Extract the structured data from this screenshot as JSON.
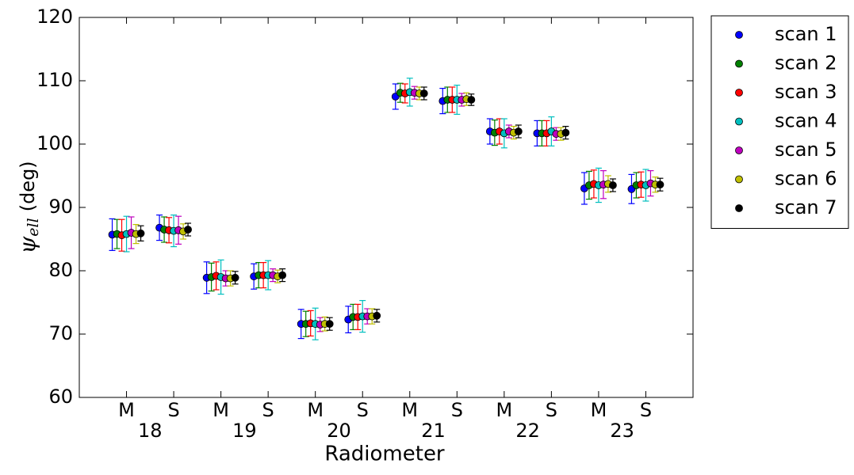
{
  "chart_data": {
    "type": "errorbar",
    "xlabel": "Radiometer",
    "ylabel": {
      "symbol": "ψ",
      "subscript": "ell",
      "unit": "(deg)"
    },
    "categories": [
      "M",
      "S",
      "M",
      "S",
      "M",
      "S",
      "M",
      "S",
      "M",
      "S",
      "M",
      "S"
    ],
    "groups": [
      "18",
      "19",
      "20",
      "21",
      "22",
      "23"
    ],
    "ylim": [
      60,
      120
    ],
    "yticks": [
      60,
      70,
      80,
      90,
      100,
      110,
      120
    ],
    "legend": "outside-upper-right",
    "series": [
      {
        "name": "scan 1",
        "color": "#0000ff",
        "values": [
          85.7,
          86.8,
          78.9,
          79.1,
          71.6,
          72.3,
          107.5,
          106.8,
          102.0,
          101.7,
          93.0,
          92.9
        ],
        "errors": [
          2.5,
          2.0,
          2.5,
          2.0,
          2.3,
          2.1,
          2.0,
          2.0,
          2.0,
          2.0,
          2.5,
          2.3
        ]
      },
      {
        "name": "scan 2",
        "color": "#008000",
        "values": [
          85.8,
          86.5,
          79.0,
          79.3,
          71.6,
          72.7,
          108.1,
          107.0,
          101.8,
          101.7,
          93.5,
          93.5
        ],
        "errors": [
          2.3,
          2.0,
          2.2,
          2.0,
          2.0,
          2.0,
          1.5,
          2.0,
          2.0,
          2.0,
          2.2,
          2.0
        ]
      },
      {
        "name": "scan 3",
        "color": "#ff0000",
        "values": [
          85.6,
          86.4,
          79.2,
          79.3,
          71.7,
          72.7,
          108.0,
          107.0,
          102.0,
          101.7,
          93.7,
          93.6
        ],
        "errors": [
          2.5,
          2.0,
          2.2,
          2.0,
          2.0,
          2.0,
          1.5,
          2.0,
          2.0,
          2.0,
          2.2,
          2.0
        ]
      },
      {
        "name": "scan 4",
        "color": "#00bfbf",
        "values": [
          85.8,
          86.3,
          79.0,
          79.3,
          71.6,
          72.8,
          108.2,
          107.0,
          101.7,
          102.0,
          93.5,
          93.5
        ],
        "errors": [
          2.8,
          2.5,
          2.7,
          2.3,
          2.5,
          2.5,
          2.2,
          2.3,
          2.3,
          2.3,
          2.7,
          2.5
        ]
      },
      {
        "name": "scan 5",
        "color": "#bf00bf",
        "values": [
          86.0,
          86.4,
          78.8,
          79.3,
          71.5,
          72.8,
          108.1,
          107.0,
          102.0,
          101.6,
          93.6,
          93.8
        ],
        "errors": [
          2.5,
          2.2,
          1.2,
          1.0,
          1.1,
          1.2,
          1.0,
          1.0,
          1.0,
          1.0,
          2.2,
          2.0
        ]
      },
      {
        "name": "scan 6",
        "color": "#bfbf00",
        "values": [
          85.8,
          86.2,
          78.8,
          79.1,
          71.6,
          72.8,
          108.0,
          107.1,
          101.8,
          101.6,
          93.7,
          93.6
        ],
        "errors": [
          1.5,
          1.2,
          1.2,
          1.0,
          1.1,
          1.2,
          1.0,
          1.0,
          1.0,
          1.0,
          1.3,
          1.2
        ]
      },
      {
        "name": "scan 7",
        "color": "#000000",
        "values": [
          85.9,
          86.5,
          78.9,
          79.3,
          71.6,
          72.9,
          108.0,
          107.0,
          102.0,
          101.8,
          93.5,
          93.6
        ],
        "errors": [
          1.2,
          1.0,
          1.0,
          1.0,
          1.0,
          1.0,
          1.0,
          0.9,
          1.0,
          1.0,
          1.0,
          1.0
        ]
      }
    ]
  }
}
